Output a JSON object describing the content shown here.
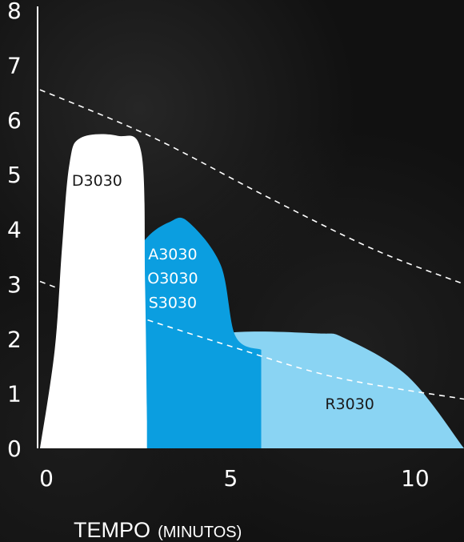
{
  "chart_data": {
    "type": "area",
    "xlabel": "TEMPO",
    "xlabel_unit": "(MINUTOS)",
    "ylabel": "",
    "xlim": [
      0,
      11.5
    ],
    "ylim": [
      0,
      8
    ],
    "x_ticks": [
      0,
      5,
      10
    ],
    "y_ticks": [
      0,
      1,
      2,
      3,
      4,
      5,
      6,
      7,
      8
    ],
    "grid": false,
    "colors": {
      "D3030": "#ffffff",
      "A3030": "#0b9ee0",
      "R3030": "#8ad4f3",
      "dashed": "#ffffff",
      "axis": "#ffffff"
    },
    "series": [
      {
        "name": "R3030",
        "label": "R3030",
        "points": [
          [
            0,
            0
          ],
          [
            1.5,
            0.8
          ],
          [
            3.5,
            1.7
          ],
          [
            5,
            2.1
          ],
          [
            7.5,
            2.1
          ],
          [
            8.3,
            2.0
          ],
          [
            10,
            1.3
          ],
          [
            11.5,
            0
          ]
        ]
      },
      {
        "name": "A3030",
        "label_lines": [
          "A3030",
          "O3030",
          "S3030"
        ],
        "points": [
          [
            0,
            0
          ],
          [
            1.5,
            2.0
          ],
          [
            2.4,
            3.3
          ],
          [
            2.9,
            3.85
          ],
          [
            3.5,
            4.13
          ],
          [
            4,
            4.15
          ],
          [
            4.9,
            3.35
          ],
          [
            5.3,
            2.05
          ],
          [
            6,
            1.8
          ]
        ]
      },
      {
        "name": "D3030",
        "label": "D3030",
        "points": [
          [
            0,
            0
          ],
          [
            0.4,
            1.8
          ],
          [
            0.6,
            3.7
          ],
          [
            0.8,
            5.2
          ],
          [
            1.1,
            5.67
          ],
          [
            2.1,
            5.71
          ],
          [
            2.75,
            5.4
          ],
          [
            2.85,
            3.0
          ],
          [
            2.9,
            0.5
          ]
        ]
      }
    ],
    "reference_lines": [
      {
        "style": "dashed",
        "points": [
          [
            0,
            6.55
          ],
          [
            3,
            5.7
          ],
          [
            6,
            4.65
          ],
          [
            9,
            3.65
          ],
          [
            11.5,
            3.0
          ]
        ]
      },
      {
        "style": "dashed",
        "points": [
          [
            0,
            3.05
          ],
          [
            2,
            2.55
          ],
          [
            5,
            1.9
          ],
          [
            8,
            1.3
          ],
          [
            11.5,
            0.9
          ]
        ]
      }
    ]
  }
}
